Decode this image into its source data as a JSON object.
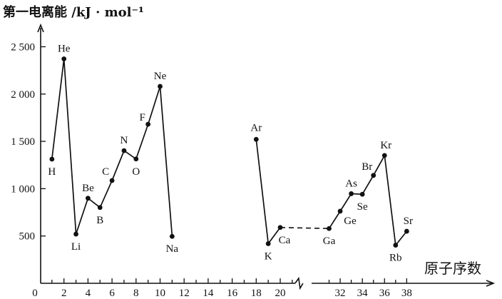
{
  "chart_data": {
    "type": "line",
    "ylabel": "第一电离能 /kJ · mol⁻¹",
    "xlabel": "原子序数",
    "ylim": [
      0,
      2700
    ],
    "yticks": [
      500,
      1000,
      1500,
      2000,
      2500
    ],
    "ytick_labels": [
      "500",
      "1 000",
      "1 500",
      "2 000",
      "2 500"
    ],
    "xticks": [
      2,
      4,
      6,
      8,
      10,
      12,
      14,
      16,
      18,
      20,
      32,
      34,
      36,
      38
    ],
    "axis_break": [
      21,
      30
    ],
    "series": [
      {
        "values": [
          {
            "z": 1,
            "el": "H",
            "y": 1312
          },
          {
            "z": 2,
            "el": "He",
            "y": 2372
          },
          {
            "z": 3,
            "el": "Li",
            "y": 520
          },
          {
            "z": 4,
            "el": "Be",
            "y": 899
          },
          {
            "z": 5,
            "el": "B",
            "y": 801
          },
          {
            "z": 6,
            "el": "C",
            "y": 1086
          },
          {
            "z": 7,
            "el": "N",
            "y": 1402
          },
          {
            "z": 8,
            "el": "O",
            "y": 1314
          },
          {
            "z": 9,
            "el": "F",
            "y": 1681
          },
          {
            "z": 10,
            "el": "Ne",
            "y": 2081
          },
          {
            "z": 11,
            "el": "Na",
            "y": 496
          }
        ]
      },
      {
        "values": [
          {
            "z": 18,
            "el": "Ar",
            "y": 1521
          },
          {
            "z": 19,
            "el": "K",
            "y": 419
          },
          {
            "z": 20,
            "el": "Ca",
            "y": 590
          }
        ]
      },
      {
        "values": [
          {
            "z": 31,
            "el": "Ga",
            "y": 579
          },
          {
            "z": 32,
            "el": "Ge",
            "y": 762
          },
          {
            "z": 33,
            "el": "As",
            "y": 947
          },
          {
            "z": 34,
            "el": "Se",
            "y": 941
          },
          {
            "z": 35,
            "el": "Br",
            "y": 1140
          },
          {
            "z": 36,
            "el": "Kr",
            "y": 1351
          },
          {
            "z": 37,
            "el": "Rb",
            "y": 403
          },
          {
            "z": 38,
            "el": "Sr",
            "y": 550
          }
        ]
      }
    ],
    "dashed_connector": [
      20,
      31
    ]
  }
}
